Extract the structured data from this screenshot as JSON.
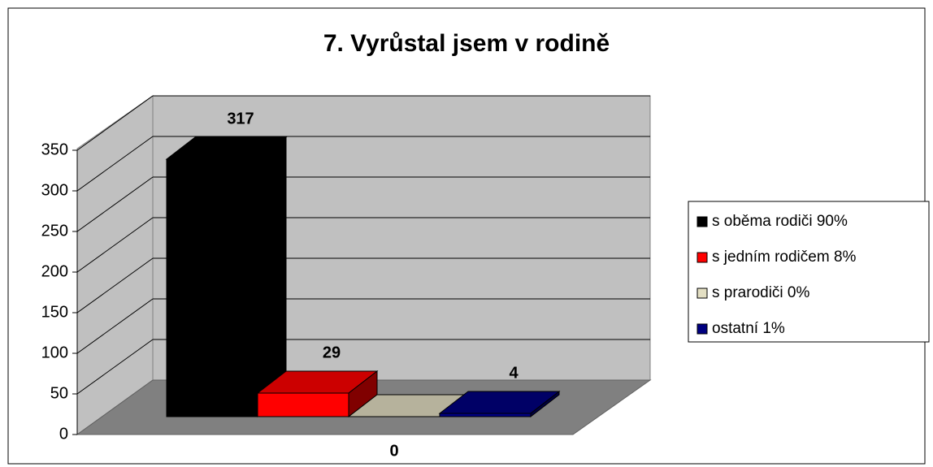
{
  "chart_data": {
    "type": "bar3d",
    "title": "7. Vyrůstal jsem v rodině",
    "series": [
      {
        "name": "s oběma rodiči 90%",
        "color": "#000000",
        "values": [
          317
        ],
        "value_labels": [
          "317"
        ]
      },
      {
        "name": "s jedním rodičem 8%",
        "color": "#ff0000",
        "values": [
          29
        ],
        "value_labels": [
          "29"
        ]
      },
      {
        "name": "s prarodiči 0%",
        "color": "#e3dfc3",
        "values": [
          0
        ],
        "value_labels": [
          "0"
        ]
      },
      {
        "name": "ostatní 1%",
        "color": "#000080",
        "values": [
          4
        ],
        "value_labels": [
          "4"
        ]
      }
    ],
    "ylim": [
      0,
      350
    ],
    "yticks": [
      0,
      50,
      100,
      150,
      200,
      250,
      300,
      350
    ],
    "grid": true,
    "legend": "right"
  }
}
